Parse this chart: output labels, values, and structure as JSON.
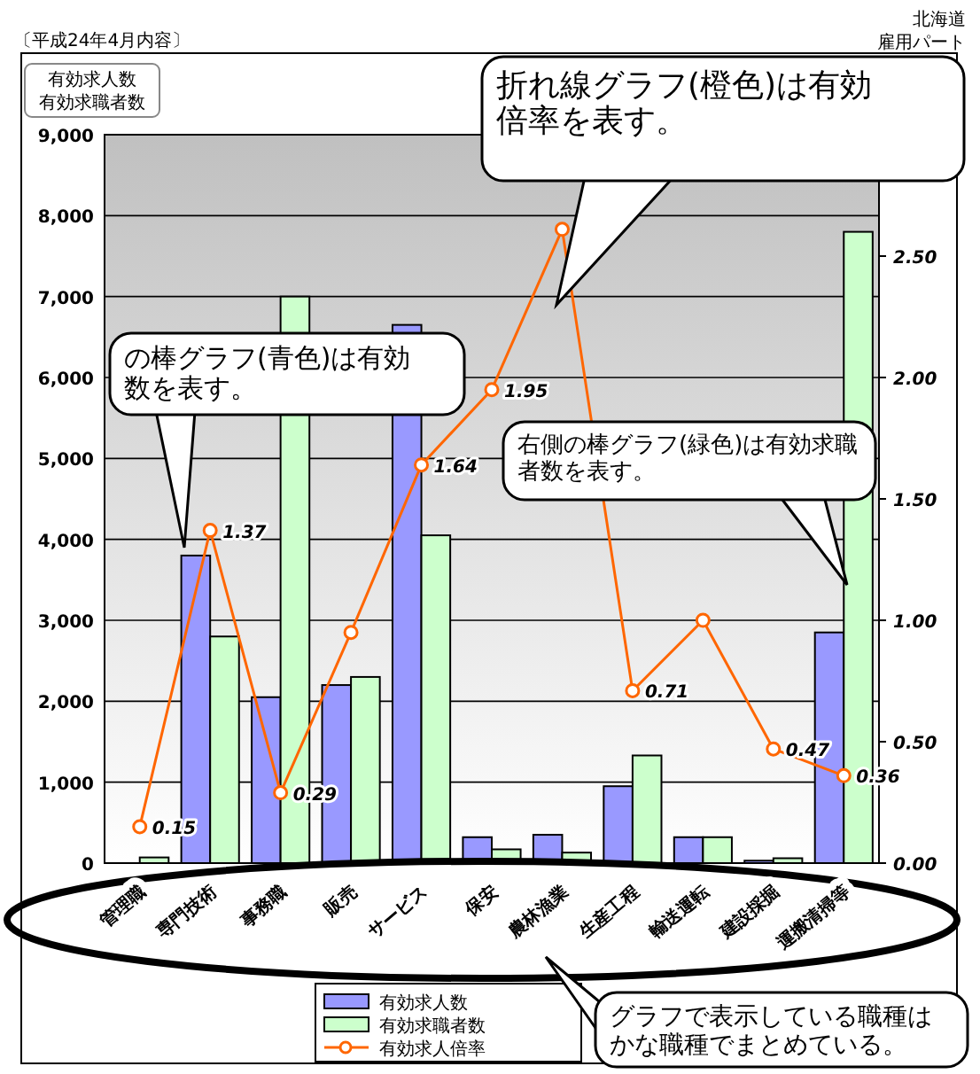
{
  "chart_data": {
    "type": "bar",
    "title": "〔平成24年4月内容〕",
    "ylabel": "有効求人数有効求職者数",
    "categories": [
      "管理職",
      "専門技術",
      "事務職",
      "販売",
      "サービス",
      "保安",
      "農林漁業",
      "生産工程",
      "輸送運転",
      "建設採掘",
      "運搬清掃等"
    ],
    "series": [
      {
        "name": "有効求人数",
        "color": "#9999ff",
        "values": [
          null,
          3800,
          2050,
          2200,
          6650,
          320,
          350,
          950,
          320,
          30,
          2850
        ]
      },
      {
        "name": "有効求職者数",
        "color": "#ccffcc",
        "values": [
          70,
          2800,
          7000,
          2300,
          4050,
          170,
          130,
          1330,
          320,
          60,
          7800
        ]
      },
      {
        "name": "有効求人倍率",
        "type": "line",
        "axis": "y2",
        "color": "#ff6600",
        "marker": "circle",
        "values": [
          0.15,
          1.37,
          0.29,
          0.95,
          1.64,
          1.95,
          2.61,
          0.71,
          1.0,
          0.47,
          0.36
        ],
        "value_labels": [
          "0.15",
          "1.37",
          "0.29",
          null,
          "1.64",
          "1.95",
          null,
          "0.71",
          null,
          "0.47",
          "0.36"
        ]
      }
    ],
    "ylim": [
      0,
      9000
    ],
    "yticks": [
      0,
      {
        "value": 1000,
        "label": "1,000"
      },
      {
        "value": 2000,
        "label": "2,000"
      },
      {
        "value": 3000,
        "label": "3,000"
      },
      {
        "value": 4000,
        "label": "4,000"
      },
      {
        "value": 5000,
        "label": "5,000"
      },
      {
        "value": 6000,
        "label": "6,000"
      },
      {
        "value": 7000,
        "label": "7,000"
      },
      {
        "value": 8000,
        "label": "8,000"
      },
      {
        "value": 9000,
        "label": "9,000"
      }
    ],
    "y2lim": [
      0,
      3
    ],
    "y2ticks": [
      {
        "value": 0,
        "label": "0.00"
      },
      {
        "value": 0.5,
        "label": "0.50"
      },
      {
        "value": 1,
        "label": "1.00"
      },
      {
        "value": 1.5,
        "label": "1.50"
      },
      {
        "value": 2,
        "label": "2.00"
      },
      {
        "value": 2.5,
        "label": "2.50"
      }
    ],
    "grid": "y",
    "legend": "bottom",
    "annotations": [
      "北海道",
      "雇用パート",
      "折れ線グラフ(橙色)は有効倍率を表す。",
      "の棒グラフ(青色)は有効数を表す。",
      "右側の棒グラフ(緑色)は有効求職者数を表す。",
      "グラフで表示している職種はかな職種でまとめている。"
    ]
  }
}
